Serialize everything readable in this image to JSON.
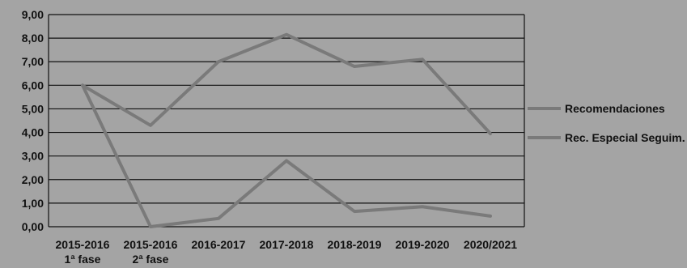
{
  "chart_data": {
    "type": "line",
    "categories": [
      [
        "2015-2016",
        "1ª fase"
      ],
      [
        "2015-2016",
        "2ª fase"
      ],
      [
        "2016-2017"
      ],
      [
        "2017-2018"
      ],
      [
        "2018-2019"
      ],
      [
        "2019-2020"
      ],
      [
        "2020/2021"
      ]
    ],
    "series": [
      {
        "name": "Recomendaciones",
        "values": [
          6.0,
          4.3,
          7.0,
          8.15,
          6.8,
          7.1,
          3.95
        ],
        "color": "#7a7a7a"
      },
      {
        "name": "Rec. Especial Seguim.",
        "values": [
          6.0,
          0.0,
          0.35,
          2.8,
          0.65,
          0.85,
          0.45
        ],
        "color": "#7a7a7a"
      }
    ],
    "ylim": [
      0,
      9
    ],
    "yticks": [
      "0,00",
      "1,00",
      "2,00",
      "3,00",
      "4,00",
      "5,00",
      "6,00",
      "7,00",
      "8,00",
      "9,00"
    ],
    "grid": true,
    "legend": "right",
    "title": "",
    "xlabel": "",
    "ylabel": ""
  }
}
